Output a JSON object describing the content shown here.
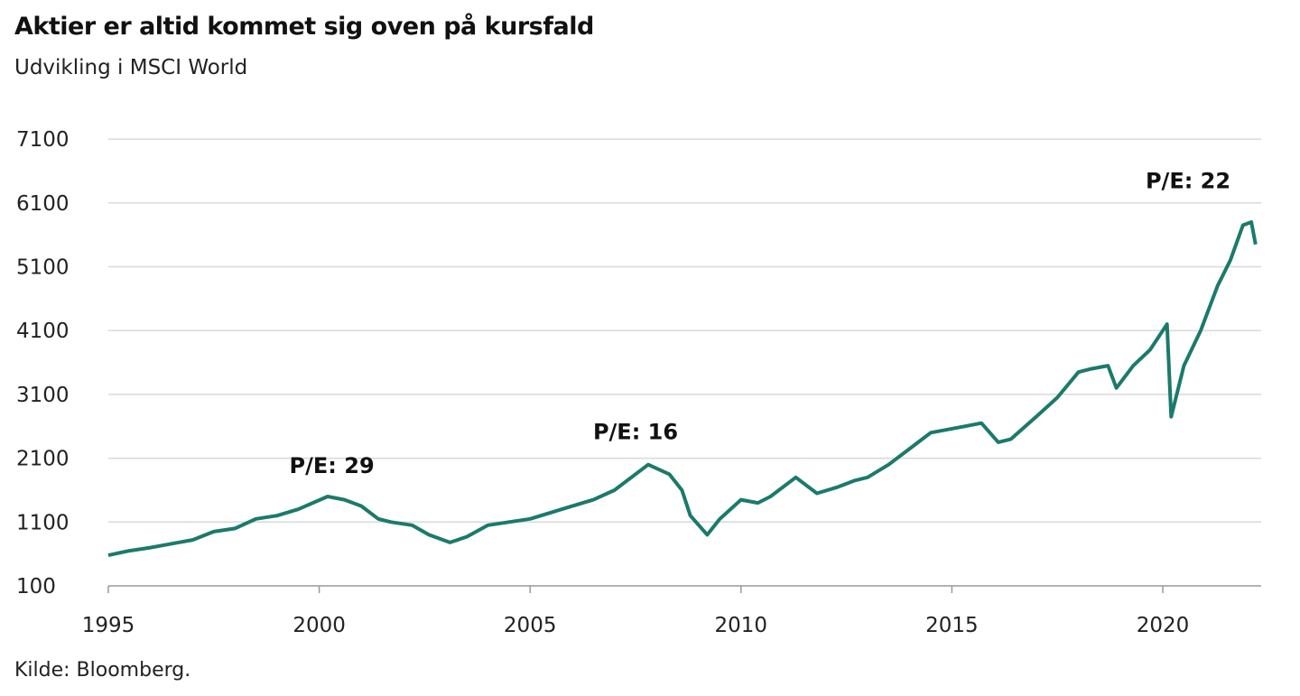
{
  "chart_data": {
    "type": "line",
    "title": "Aktier er altid kommet sig oven på kursfald",
    "subtitle": "Udvikling i MSCI World",
    "source": "Kilde:  Bloomberg.",
    "xlabel": "",
    "ylabel": "",
    "xlim": [
      1995,
      2022.3
    ],
    "ylim": [
      100,
      7100
    ],
    "yticks": [
      100,
      1100,
      2100,
      3100,
      4100,
      5100,
      6100,
      7100
    ],
    "xticks": [
      1995,
      2000,
      2005,
      2010,
      2015,
      2020
    ],
    "grid": true,
    "line_color": "#1b7a6c",
    "series": [
      {
        "name": "MSCI World",
        "x": [
          1995.0,
          1995.5,
          1996,
          1996.5,
          1997,
          1997.5,
          1998,
          1998.5,
          1999,
          1999.5,
          2000.2,
          2000.6,
          2001,
          2001.4,
          2001.7,
          2002.2,
          2002.6,
          2003.1,
          2003.5,
          2004,
          2004.5,
          2005,
          2005.5,
          2006,
          2006.5,
          2007,
          2007.5,
          2007.8,
          2008.3,
          2008.6,
          2008.8,
          2009.2,
          2009.5,
          2010,
          2010.4,
          2010.7,
          2011.3,
          2011.8,
          2012.3,
          2012.7,
          2013,
          2013.5,
          2014,
          2014.5,
          2015.3,
          2015.7,
          2016.1,
          2016.4,
          2017,
          2017.5,
          2018.0,
          2018.3,
          2018.7,
          2018.9,
          2019.3,
          2019.7,
          2020.1,
          2020.2,
          2020.5,
          2020.9,
          2021.3,
          2021.6,
          2021.9,
          2022.1,
          2022.2
        ],
        "y": [
          580,
          650,
          700,
          760,
          820,
          950,
          1000,
          1150,
          1200,
          1300,
          1500,
          1450,
          1350,
          1150,
          1100,
          1050,
          900,
          780,
          870,
          1050,
          1100,
          1150,
          1250,
          1350,
          1450,
          1600,
          1850,
          2000,
          1850,
          1600,
          1200,
          900,
          1150,
          1450,
          1400,
          1500,
          1800,
          1550,
          1650,
          1750,
          1800,
          2000,
          2250,
          2500,
          2600,
          2650,
          2350,
          2400,
          2750,
          3050,
          3450,
          3500,
          3550,
          3200,
          3550,
          3800,
          4200,
          2750,
          3550,
          4100,
          4800,
          5200,
          5750,
          5800,
          5450
        ]
      }
    ],
    "annotations": [
      {
        "text": "P/E: 29",
        "x": 2000.3,
        "y": 1870
      },
      {
        "text": "P/E: 16",
        "x": 2007.5,
        "y": 2400
      },
      {
        "text": "P/E: 22",
        "x": 2020.6,
        "y": 6330
      }
    ]
  }
}
